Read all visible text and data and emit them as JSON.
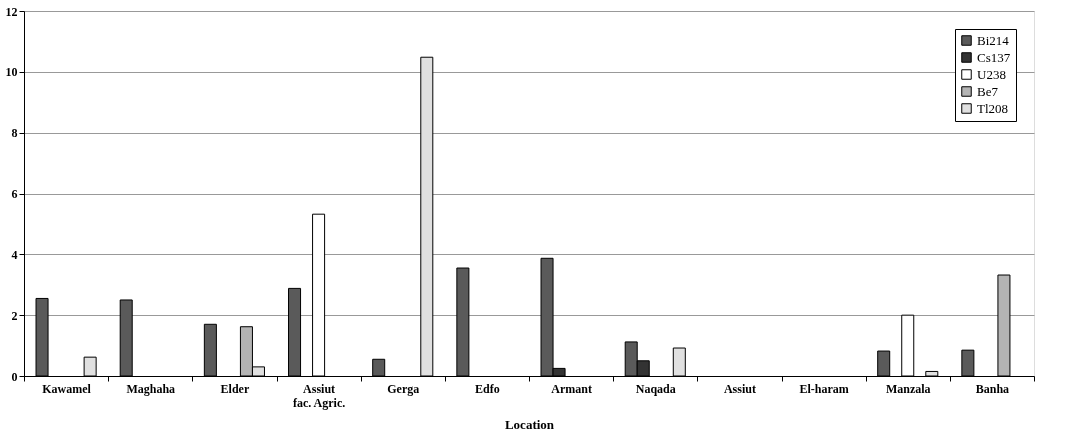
{
  "chart_data": {
    "type": "bar",
    "xlabel": "Location",
    "categories": [
      "Kawamel",
      "Maghaha",
      "Elder",
      "Assiut fac. Agric.",
      "Gerga",
      "Edfo",
      "Armant",
      "Naqada",
      "Assiut",
      "El-haram",
      "Manzala",
      "Banha"
    ],
    "series": [
      {
        "name": "Bi214",
        "color": "#5a5a5a",
        "values": [
          2.55,
          2.5,
          1.7,
          2.88,
          0.55,
          3.55,
          3.87,
          1.12,
          null,
          null,
          0.82,
          0.85
        ]
      },
      {
        "name": "Cs137",
        "color": "#333333",
        "values": [
          null,
          null,
          null,
          null,
          null,
          null,
          0.25,
          0.5,
          null,
          null,
          null,
          null
        ]
      },
      {
        "name": "U238",
        "color": "#ffffff",
        "values": [
          null,
          null,
          null,
          5.32,
          null,
          null,
          null,
          null,
          null,
          null,
          2.0,
          null
        ]
      },
      {
        "name": "Be7",
        "color": "#b4b4b4",
        "values": [
          null,
          null,
          1.62,
          null,
          null,
          null,
          null,
          null,
          null,
          null,
          null,
          3.32
        ]
      },
      {
        "name": "Tl208",
        "color": "#e0e0e0",
        "values": [
          0.62,
          null,
          0.3,
          null,
          10.48,
          null,
          null,
          0.92,
          null,
          null,
          0.15,
          null
        ]
      }
    ],
    "ylim": [
      0,
      12
    ],
    "yticks": [
      0,
      2,
      4,
      6,
      8,
      10,
      12
    ],
    "grid": "y",
    "legend": "top right"
  }
}
